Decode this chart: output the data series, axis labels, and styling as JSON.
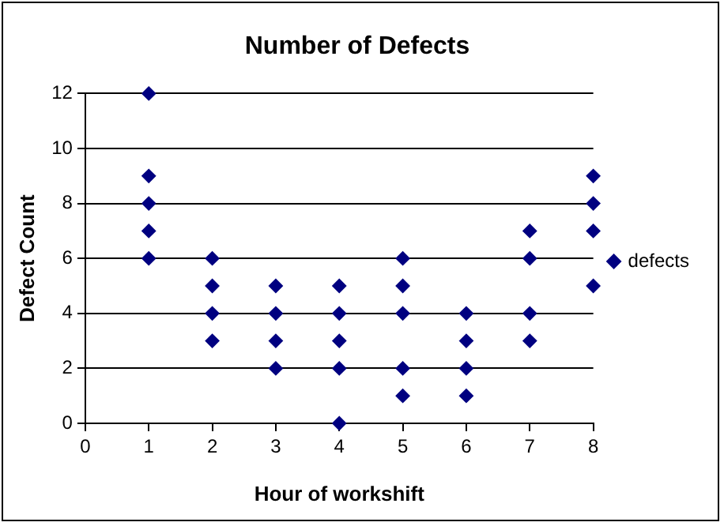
{
  "chart_data": {
    "type": "scatter",
    "title": "Number of Defects",
    "xlabel": "Hour of workshift",
    "ylabel": "Defect Count",
    "series": [
      {
        "name": "defects",
        "color": "#000080",
        "x": [
          1,
          1,
          1,
          1,
          1,
          2,
          2,
          2,
          2,
          3,
          3,
          3,
          3,
          4,
          4,
          4,
          4,
          4,
          5,
          5,
          5,
          5,
          5,
          6,
          6,
          6,
          6,
          7,
          7,
          7,
          7,
          8,
          8,
          8,
          8
        ],
        "values": [
          12,
          9,
          8,
          7,
          6,
          6,
          5,
          4,
          3,
          5,
          4,
          3,
          2,
          5,
          4,
          3,
          2,
          0,
          6,
          5,
          4,
          2,
          1,
          4,
          3,
          2,
          1,
          7,
          6,
          4,
          3,
          9,
          8,
          7,
          5
        ]
      }
    ],
    "xlim": [
      0,
      8
    ],
    "xticks": [
      0,
      1,
      2,
      3,
      4,
      5,
      6,
      7,
      8
    ],
    "ylim": [
      0,
      12
    ],
    "yticks": [
      0,
      2,
      4,
      6,
      8,
      10,
      12
    ],
    "grid": "y",
    "legend": "right",
    "marker": "diamond"
  }
}
